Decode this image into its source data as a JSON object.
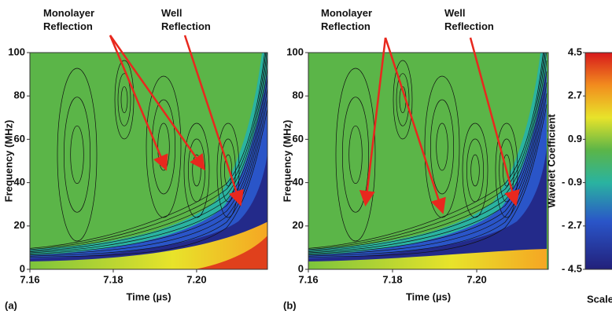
{
  "chart_data": [
    {
      "type": "contour",
      "panel_label": "(a)",
      "xlabel": "Time (µs)",
      "ylabel": "Frequency (MHz)",
      "xlim": [
        7.16,
        7.217
      ],
      "xticks": [
        7.16,
        7.18,
        {
          "value": 7.2,
          "label": "7.20"
        }
      ],
      "ylim": [
        0,
        100
      ],
      "yticks": [
        0,
        20,
        40,
        60,
        80,
        100
      ],
      "annotations": [
        {
          "text": "Monolayer Reflection"
        },
        {
          "text": "Well Reflection"
        }
      ]
    },
    {
      "type": "contour",
      "panel_label": "(b)",
      "xlabel": "Time (µs)",
      "ylabel": "Frequency (MHz)",
      "xlim": [
        7.16,
        7.217
      ],
      "xticks": [
        7.16,
        7.18,
        {
          "value": 7.2,
          "label": "7.20"
        }
      ],
      "ylim": [
        0,
        100
      ],
      "yticks": [
        0,
        20,
        40,
        60,
        80,
        100
      ],
      "annotations": [
        {
          "text": "Monolayer Reflection"
        },
        {
          "text": "Well Reflection"
        }
      ]
    },
    {
      "type": "colorbar",
      "ylabel": "Wavelet Coefficient",
      "xlabel": "Scale",
      "ylim": [
        -4.5,
        4.5
      ],
      "yticks": [
        4.5,
        2.7,
        0.9,
        {
          "value": -0.9,
          "label": "- 0.9"
        },
        {
          "value": -2.7,
          "label": "- 2.7"
        },
        {
          "value": -4.5,
          "label": "- 4.5"
        }
      ]
    }
  ]
}
